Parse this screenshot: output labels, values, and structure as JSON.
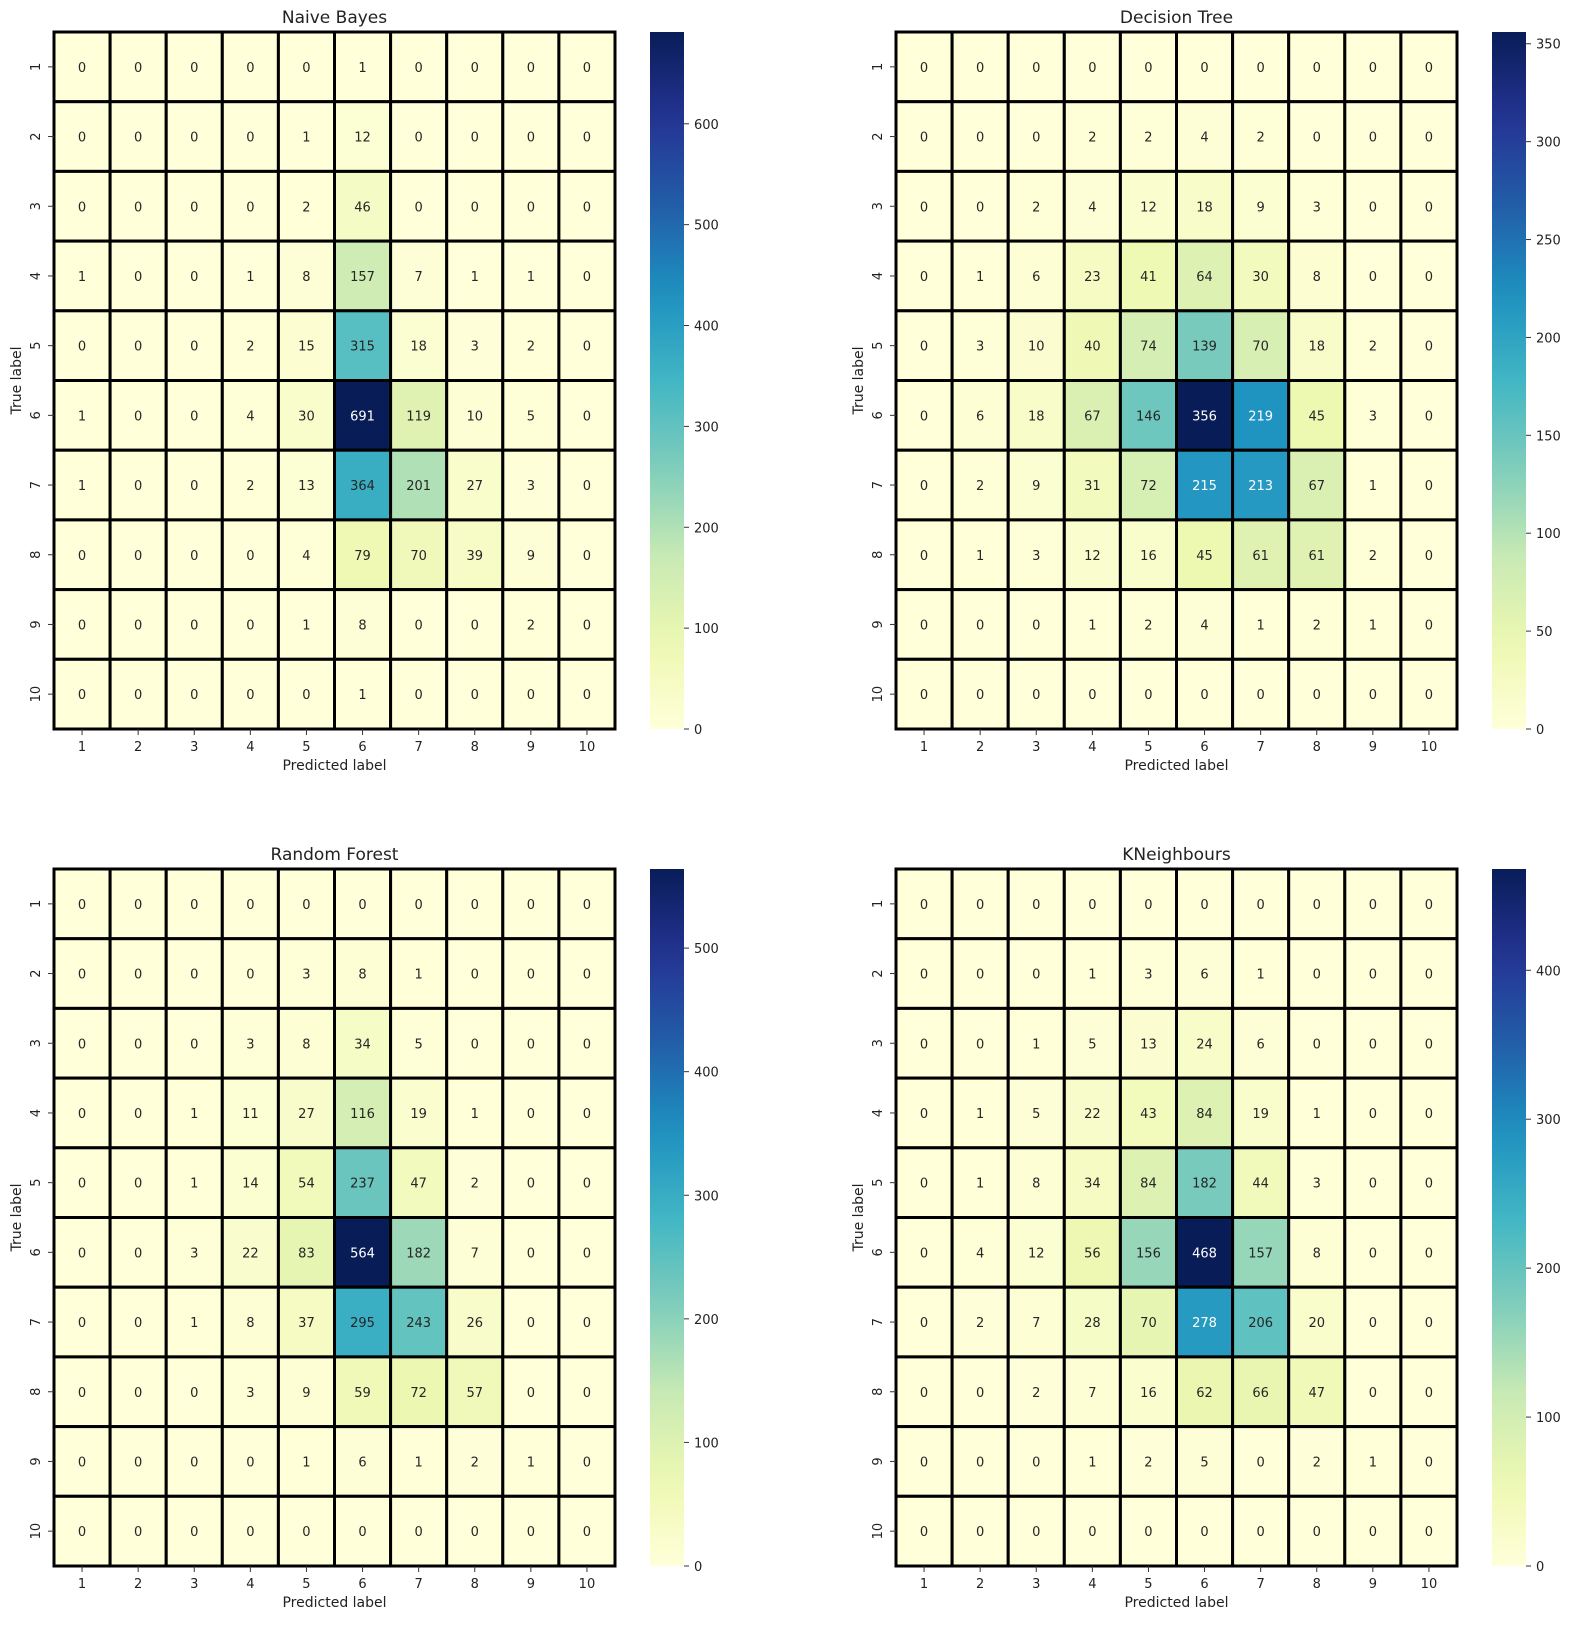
{
  "colormap": "YlGnBu",
  "chart_data": [
    {
      "type": "heatmap",
      "title": "Naive Bayes",
      "xlabel": "Predicted label",
      "ylabel": "True label",
      "x_categories": [
        "1",
        "2",
        "3",
        "4",
        "5",
        "6",
        "7",
        "8",
        "9",
        "10"
      ],
      "y_categories": [
        "1",
        "2",
        "3",
        "4",
        "5",
        "6",
        "7",
        "8",
        "9",
        "10"
      ],
      "values": [
        [
          0,
          0,
          0,
          0,
          0,
          1,
          0,
          0,
          0,
          0
        ],
        [
          0,
          0,
          0,
          0,
          1,
          12,
          0,
          0,
          0,
          0
        ],
        [
          0,
          0,
          0,
          0,
          2,
          46,
          0,
          0,
          0,
          0
        ],
        [
          1,
          0,
          0,
          1,
          8,
          157,
          7,
          1,
          1,
          0
        ],
        [
          0,
          0,
          0,
          2,
          15,
          315,
          18,
          3,
          2,
          0
        ],
        [
          1,
          0,
          0,
          4,
          30,
          691,
          119,
          10,
          5,
          0
        ],
        [
          1,
          0,
          0,
          2,
          13,
          364,
          201,
          27,
          3,
          0
        ],
        [
          0,
          0,
          0,
          0,
          4,
          79,
          70,
          39,
          9,
          0
        ],
        [
          0,
          0,
          0,
          0,
          1,
          8,
          0,
          0,
          2,
          0
        ],
        [
          0,
          0,
          0,
          0,
          0,
          1,
          0,
          0,
          0,
          0
        ]
      ],
      "vmin": 0,
      "vmax": 691,
      "colorbar_ticks": [
        0,
        100,
        200,
        300,
        400,
        500,
        600
      ],
      "colorbar_tick_labels": [
        "0",
        "100",
        "200",
        "300",
        "400",
        "500",
        "600"
      ],
      "show_ylabel": true
    },
    {
      "type": "heatmap",
      "title": "Decision Tree",
      "xlabel": "Predicted label",
      "ylabel": "True label",
      "x_categories": [
        "1",
        "2",
        "3",
        "4",
        "5",
        "6",
        "7",
        "8",
        "9",
        "10"
      ],
      "y_categories": [
        "1",
        "2",
        "3",
        "4",
        "5",
        "6",
        "7",
        "8",
        "9",
        "10"
      ],
      "values": [
        [
          0,
          0,
          0,
          0,
          0,
          0,
          0,
          0,
          0,
          0
        ],
        [
          0,
          0,
          0,
          2,
          2,
          4,
          2,
          0,
          0,
          0
        ],
        [
          0,
          0,
          2,
          4,
          12,
          18,
          9,
          3,
          0,
          0
        ],
        [
          0,
          1,
          6,
          23,
          41,
          64,
          30,
          8,
          0,
          0
        ],
        [
          0,
          3,
          10,
          40,
          74,
          139,
          70,
          18,
          2,
          0
        ],
        [
          0,
          6,
          18,
          67,
          146,
          356,
          219,
          45,
          3,
          0
        ],
        [
          0,
          2,
          9,
          31,
          72,
          215,
          213,
          67,
          1,
          0
        ],
        [
          0,
          1,
          3,
          12,
          16,
          45,
          61,
          61,
          2,
          0
        ],
        [
          0,
          0,
          0,
          1,
          2,
          4,
          1,
          2,
          1,
          0
        ],
        [
          0,
          0,
          0,
          0,
          0,
          0,
          0,
          0,
          0,
          0
        ]
      ],
      "vmin": 0,
      "vmax": 356,
      "colorbar_ticks": [
        0,
        50,
        100,
        150,
        200,
        250,
        300,
        350
      ],
      "colorbar_tick_labels": [
        "0",
        "50",
        "100",
        "150",
        "200",
        "250",
        "300",
        "350"
      ],
      "show_ylabel": true
    },
    {
      "type": "heatmap",
      "title": "Random Forest",
      "xlabel": "Predicted label",
      "ylabel": "True label",
      "x_categories": [
        "1",
        "2",
        "3",
        "4",
        "5",
        "6",
        "7",
        "8",
        "9",
        "10"
      ],
      "y_categories": [
        "1",
        "2",
        "3",
        "4",
        "5",
        "6",
        "7",
        "8",
        "9",
        "10"
      ],
      "values": [
        [
          0,
          0,
          0,
          0,
          0,
          0,
          0,
          0,
          0,
          0
        ],
        [
          0,
          0,
          0,
          0,
          3,
          8,
          1,
          0,
          0,
          0
        ],
        [
          0,
          0,
          0,
          3,
          8,
          34,
          5,
          0,
          0,
          0
        ],
        [
          0,
          0,
          1,
          11,
          27,
          116,
          19,
          1,
          0,
          0
        ],
        [
          0,
          0,
          1,
          14,
          54,
          237,
          47,
          2,
          0,
          0
        ],
        [
          0,
          0,
          3,
          22,
          83,
          564,
          182,
          7,
          0,
          0
        ],
        [
          0,
          0,
          1,
          8,
          37,
          295,
          243,
          26,
          0,
          0
        ],
        [
          0,
          0,
          0,
          3,
          9,
          59,
          72,
          57,
          0,
          0
        ],
        [
          0,
          0,
          0,
          0,
          1,
          6,
          1,
          2,
          1,
          0
        ],
        [
          0,
          0,
          0,
          0,
          0,
          0,
          0,
          0,
          0,
          0
        ]
      ],
      "vmin": 0,
      "vmax": 564,
      "colorbar_ticks": [
        0,
        100,
        200,
        300,
        400,
        500
      ],
      "colorbar_tick_labels": [
        "0",
        "100",
        "200",
        "300",
        "400",
        "500"
      ],
      "show_ylabel": true
    },
    {
      "type": "heatmap",
      "title": "KNeighbours",
      "xlabel": "Predicted label",
      "ylabel": "True label",
      "x_categories": [
        "1",
        "2",
        "3",
        "4",
        "5",
        "6",
        "7",
        "8",
        "9",
        "10"
      ],
      "y_categories": [
        "1",
        "2",
        "3",
        "4",
        "5",
        "6",
        "7",
        "8",
        "9",
        "10"
      ],
      "values": [
        [
          0,
          0,
          0,
          0,
          0,
          0,
          0,
          0,
          0,
          0
        ],
        [
          0,
          0,
          0,
          1,
          3,
          6,
          1,
          0,
          0,
          0
        ],
        [
          0,
          0,
          1,
          5,
          13,
          24,
          6,
          0,
          0,
          0
        ],
        [
          0,
          1,
          5,
          22,
          43,
          84,
          19,
          1,
          0,
          0
        ],
        [
          0,
          1,
          8,
          34,
          84,
          182,
          44,
          3,
          0,
          0
        ],
        [
          0,
          4,
          12,
          56,
          156,
          468,
          157,
          8,
          0,
          0
        ],
        [
          0,
          2,
          7,
          28,
          70,
          278,
          206,
          20,
          0,
          0
        ],
        [
          0,
          0,
          2,
          7,
          16,
          62,
          66,
          47,
          0,
          0
        ],
        [
          0,
          0,
          0,
          1,
          2,
          5,
          0,
          2,
          1,
          0
        ],
        [
          0,
          0,
          0,
          0,
          0,
          0,
          0,
          0,
          0,
          0
        ]
      ],
      "vmin": 0,
      "vmax": 468,
      "colorbar_ticks": [
        0,
        100,
        200,
        300,
        400
      ],
      "colorbar_tick_labels": [
        "0",
        "100",
        "200",
        "300",
        "400"
      ],
      "show_ylabel": true
    }
  ]
}
